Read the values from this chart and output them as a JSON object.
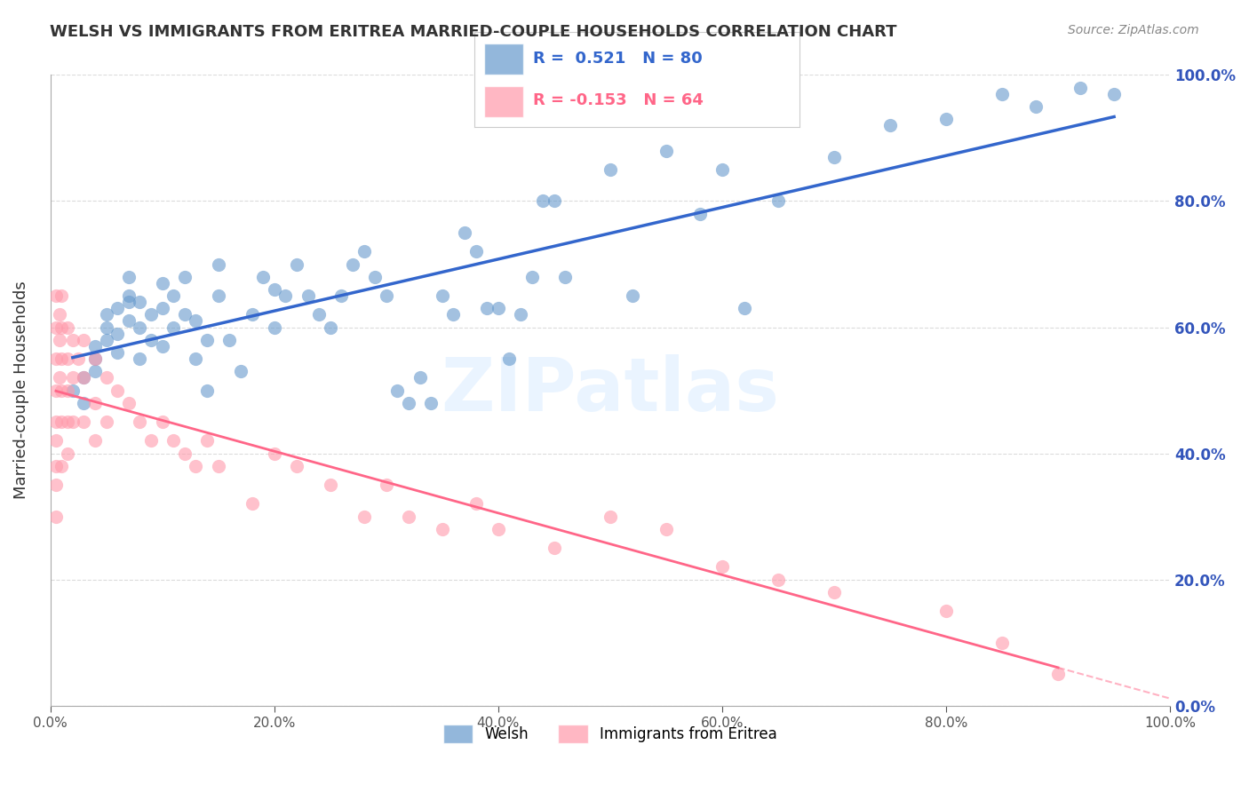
{
  "title": "WELSH VS IMMIGRANTS FROM ERITREA MARRIED-COUPLE HOUSEHOLDS CORRELATION CHART",
  "source": "Source: ZipAtlas.com",
  "ylabel": "Married-couple Households",
  "xlabel": "",
  "watermark": "ZIPatlas",
  "legend_welsh": "Welsh",
  "legend_eritrea": "Immigrants from Eritrea",
  "r_welsh": 0.521,
  "n_welsh": 80,
  "r_eritrea": -0.153,
  "n_eritrea": 64,
  "blue_color": "#6699CC",
  "pink_color": "#FF99AA",
  "blue_line_color": "#3366CC",
  "pink_line_color": "#FF6688",
  "ytick_color": "#3355BB",
  "ytick_labels": [
    "0.0%",
    "20.0%",
    "40.0%",
    "60.0%",
    "80.0%",
    "100.0%"
  ],
  "ytick_values": [
    0.0,
    0.2,
    0.4,
    0.6,
    0.8,
    1.0
  ],
  "xtick_labels": [
    "0.0%",
    "20.0%",
    "40.0%",
    "60.0%",
    "80.0%",
    "100.0%"
  ],
  "xtick_values": [
    0.0,
    0.2,
    0.4,
    0.6,
    0.8,
    1.0
  ],
  "welsh_x": [
    0.02,
    0.03,
    0.03,
    0.04,
    0.04,
    0.04,
    0.05,
    0.05,
    0.05,
    0.06,
    0.06,
    0.06,
    0.07,
    0.07,
    0.07,
    0.07,
    0.08,
    0.08,
    0.08,
    0.09,
    0.09,
    0.1,
    0.1,
    0.1,
    0.11,
    0.11,
    0.12,
    0.12,
    0.13,
    0.13,
    0.14,
    0.14,
    0.15,
    0.15,
    0.16,
    0.17,
    0.18,
    0.19,
    0.2,
    0.2,
    0.21,
    0.22,
    0.23,
    0.24,
    0.25,
    0.26,
    0.27,
    0.28,
    0.29,
    0.3,
    0.31,
    0.32,
    0.33,
    0.34,
    0.35,
    0.36,
    0.37,
    0.38,
    0.39,
    0.4,
    0.41,
    0.42,
    0.43,
    0.44,
    0.45,
    0.46,
    0.5,
    0.52,
    0.55,
    0.58,
    0.6,
    0.62,
    0.65,
    0.7,
    0.75,
    0.8,
    0.85,
    0.88,
    0.92,
    0.95
  ],
  "welsh_y": [
    0.5,
    0.48,
    0.52,
    0.55,
    0.53,
    0.57,
    0.6,
    0.58,
    0.62,
    0.56,
    0.59,
    0.63,
    0.65,
    0.61,
    0.64,
    0.68,
    0.55,
    0.6,
    0.64,
    0.58,
    0.62,
    0.57,
    0.63,
    0.67,
    0.6,
    0.65,
    0.62,
    0.68,
    0.55,
    0.61,
    0.5,
    0.58,
    0.65,
    0.7,
    0.58,
    0.53,
    0.62,
    0.68,
    0.6,
    0.66,
    0.65,
    0.7,
    0.65,
    0.62,
    0.6,
    0.65,
    0.7,
    0.72,
    0.68,
    0.65,
    0.5,
    0.48,
    0.52,
    0.48,
    0.65,
    0.62,
    0.75,
    0.72,
    0.63,
    0.63,
    0.55,
    0.62,
    0.68,
    0.8,
    0.8,
    0.68,
    0.85,
    0.65,
    0.88,
    0.78,
    0.85,
    0.63,
    0.8,
    0.87,
    0.92,
    0.93,
    0.97,
    0.95,
    0.98,
    0.97
  ],
  "eritrea_x": [
    0.005,
    0.005,
    0.005,
    0.005,
    0.005,
    0.005,
    0.005,
    0.005,
    0.005,
    0.008,
    0.008,
    0.008,
    0.01,
    0.01,
    0.01,
    0.01,
    0.01,
    0.01,
    0.015,
    0.015,
    0.015,
    0.015,
    0.015,
    0.02,
    0.02,
    0.02,
    0.025,
    0.03,
    0.03,
    0.03,
    0.04,
    0.04,
    0.04,
    0.05,
    0.05,
    0.06,
    0.07,
    0.08,
    0.09,
    0.1,
    0.11,
    0.12,
    0.13,
    0.14,
    0.15,
    0.18,
    0.2,
    0.22,
    0.25,
    0.28,
    0.3,
    0.32,
    0.35,
    0.38,
    0.4,
    0.45,
    0.5,
    0.55,
    0.6,
    0.65,
    0.7,
    0.8,
    0.85,
    0.9
  ],
  "eritrea_y": [
    0.65,
    0.6,
    0.55,
    0.5,
    0.45,
    0.42,
    0.38,
    0.35,
    0.3,
    0.62,
    0.58,
    0.52,
    0.65,
    0.6,
    0.55,
    0.5,
    0.45,
    0.38,
    0.6,
    0.55,
    0.5,
    0.45,
    0.4,
    0.58,
    0.52,
    0.45,
    0.55,
    0.58,
    0.52,
    0.45,
    0.55,
    0.48,
    0.42,
    0.52,
    0.45,
    0.5,
    0.48,
    0.45,
    0.42,
    0.45,
    0.42,
    0.4,
    0.38,
    0.42,
    0.38,
    0.32,
    0.4,
    0.38,
    0.35,
    0.3,
    0.35,
    0.3,
    0.28,
    0.32,
    0.28,
    0.25,
    0.3,
    0.28,
    0.22,
    0.2,
    0.18,
    0.15,
    0.1,
    0.05
  ]
}
